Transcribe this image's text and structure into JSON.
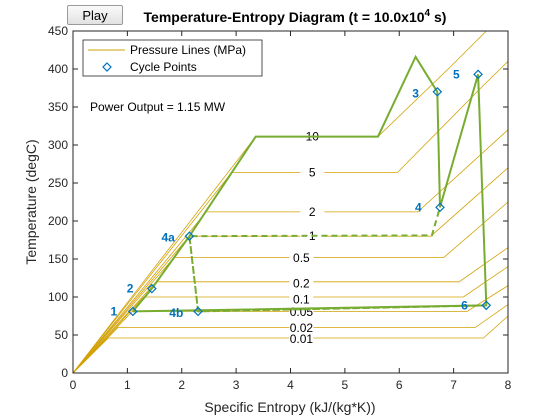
{
  "controls": {
    "play_label": "Play"
  },
  "annotation": "Power Output = 1.15 MW",
  "chart_data": {
    "type": "line",
    "title": "Temperature-Entropy Diagram (t = 10.0x10",
    "title_sup": "4",
    "title_tail": " s)",
    "xlabel": "Specific Entropy (kJ/(kg*K))",
    "ylabel": "Temperature (degC)",
    "xlim": [
      0,
      8
    ],
    "ylim": [
      0,
      450
    ],
    "xticks": [
      0,
      1,
      2,
      3,
      4,
      5,
      6,
      7,
      8
    ],
    "yticks": [
      0,
      50,
      100,
      150,
      200,
      250,
      300,
      350,
      400,
      450
    ],
    "grid": false,
    "legend": {
      "location": "top-left",
      "entries": [
        "Pressure Lines (MPa)",
        "Cycle Points"
      ]
    },
    "colors": {
      "pressure": "#d2a106",
      "cycle": "#77ac30",
      "points": "#0072bd"
    },
    "pressure_lines": [
      {
        "label": "0.01",
        "label_at": [
          4.2,
          45
        ],
        "points": [
          [
            0,
            0
          ],
          [
            0.65,
            46
          ],
          [
            7.55,
            46
          ],
          [
            8,
            75
          ]
        ]
      },
      {
        "label": "0.02",
        "label_at": [
          4.2,
          59
        ],
        "points": [
          [
            0,
            0
          ],
          [
            0.83,
            60
          ],
          [
            7.4,
            60
          ],
          [
            8,
            90
          ]
        ]
      },
      {
        "label": "0.05",
        "label_at": [
          4.2,
          80
        ],
        "points": [
          [
            0,
            0
          ],
          [
            1.09,
            81
          ],
          [
            7.25,
            81
          ],
          [
            8,
            115
          ]
        ]
      },
      {
        "label": "0.1",
        "label_at": [
          4.2,
          97
        ],
        "points": [
          [
            0,
            0
          ],
          [
            1.3,
            100
          ],
          [
            7.18,
            100
          ],
          [
            8,
            140
          ]
        ]
      },
      {
        "label": "0.2",
        "label_at": [
          4.2,
          118
        ],
        "points": [
          [
            0,
            0
          ],
          [
            1.53,
            120
          ],
          [
            7.1,
            120
          ],
          [
            8,
            165
          ]
        ]
      },
      {
        "label": "0.5",
        "label_at": [
          4.2,
          151
        ],
        "points": [
          [
            0,
            0
          ],
          [
            1.86,
            152
          ],
          [
            6.82,
            152
          ],
          [
            8,
            225
          ]
        ]
      },
      {
        "label": "1",
        "label_at": [
          4.4,
          180
        ],
        "points": [
          [
            0,
            0
          ],
          [
            2.14,
            180
          ],
          [
            6.58,
            180
          ],
          [
            8,
            270
          ]
        ]
      },
      {
        "label": "2",
        "label_at": [
          4.4,
          212
        ],
        "points": [
          [
            0,
            0
          ],
          [
            2.45,
            212
          ],
          [
            6.34,
            212
          ],
          [
            8,
            320
          ]
        ]
      },
      {
        "label": "5",
        "label_at": [
          4.4,
          264
        ],
        "points": [
          [
            0,
            0
          ],
          [
            2.92,
            264
          ],
          [
            5.97,
            264
          ],
          [
            7.5,
            375
          ],
          [
            8,
            410
          ]
        ]
      },
      {
        "label": "10",
        "label_at": [
          4.4,
          311
        ],
        "points": [
          [
            0,
            0
          ],
          [
            3.36,
            311
          ],
          [
            5.61,
            311
          ],
          [
            6.9,
            400
          ],
          [
            7.6,
            450
          ]
        ]
      }
    ],
    "cycle_path": [
      [
        1.1,
        81
      ],
      [
        1.45,
        111
      ],
      [
        2.14,
        180
      ],
      [
        3.36,
        311
      ],
      [
        5.61,
        311
      ],
      [
        6.3,
        416
      ],
      [
        6.7,
        370
      ],
      [
        6.75,
        218
      ],
      [
        7.45,
        393
      ],
      [
        7.6,
        89
      ],
      [
        1.1,
        81
      ]
    ],
    "reheat_path": [
      [
        2.14,
        180
      ],
      [
        2.3,
        81
      ],
      [
        7.6,
        89
      ],
      [
        2.3,
        81
      ],
      [
        2.14,
        180
      ],
      [
        6.6,
        181
      ],
      [
        6.75,
        218
      ]
    ],
    "cycle_points": [
      {
        "label": "1",
        "s": 1.1,
        "T": 81,
        "label_at": [
          0.75,
          81
        ]
      },
      {
        "label": "2",
        "s": 1.45,
        "T": 111,
        "label_at": [
          1.05,
          111
        ]
      },
      {
        "label": "3",
        "s": 6.7,
        "T": 370,
        "label_at": [
          6.3,
          368
        ]
      },
      {
        "label": "4",
        "s": 6.75,
        "T": 218,
        "label_at": [
          6.35,
          218
        ]
      },
      {
        "label": "4a",
        "s": 2.14,
        "T": 180,
        "label_at": [
          1.75,
          178
        ]
      },
      {
        "label": "4b",
        "s": 2.3,
        "T": 81,
        "label_at": [
          1.9,
          79
        ]
      },
      {
        "label": "5",
        "s": 7.45,
        "T": 393,
        "label_at": [
          7.05,
          393
        ]
      },
      {
        "label": "6",
        "s": 7.6,
        "T": 89,
        "label_at": [
          7.2,
          89
        ]
      }
    ]
  }
}
